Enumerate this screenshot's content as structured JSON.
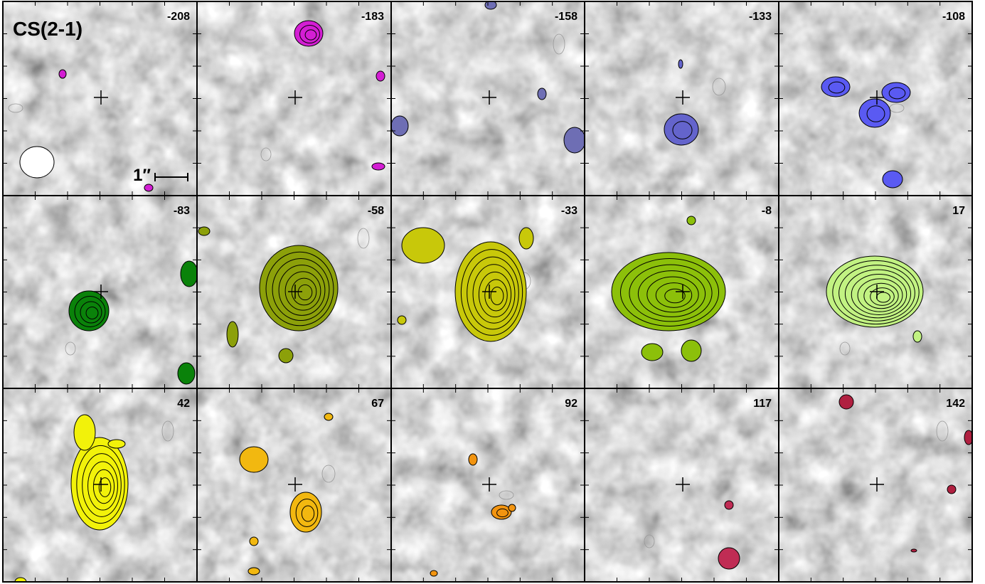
{
  "title": "CS(2-1)",
  "scale_bar": "1″",
  "panels": [
    {
      "label": "-208",
      "color": "#d31ed3"
    },
    {
      "label": "-183",
      "color": "#d31ed3"
    },
    {
      "label": "-158",
      "color": "#6e6eb4"
    },
    {
      "label": "-133",
      "color": "#6464cc"
    },
    {
      "label": "-108",
      "color": "#5a5af2"
    },
    {
      "label": "-83",
      "color": "#0a820a"
    },
    {
      "label": "-58",
      "color": "#8ca00a"
    },
    {
      "label": "-33",
      "color": "#c8c80a"
    },
    {
      "label": "-8",
      "color": "#8cc00a"
    },
    {
      "label": "17",
      "color": "#c2f282"
    },
    {
      "label": "42",
      "color": "#f2f20a"
    },
    {
      "label": "67",
      "color": "#f2b810"
    },
    {
      "label": "92",
      "color": "#f29410"
    },
    {
      "label": "117",
      "color": "#c02c54"
    },
    {
      "label": "142",
      "color": "#b02040"
    }
  ]
}
